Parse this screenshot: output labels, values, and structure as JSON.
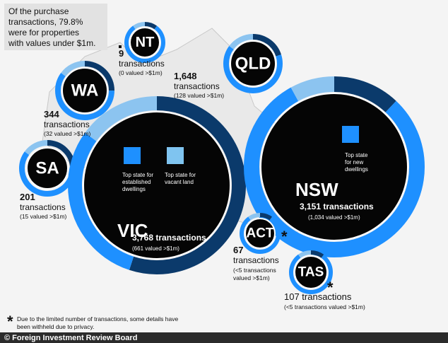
{
  "note": {
    "lines": [
      "Of the purchase",
      "transactions, 79.8%",
      "were for properties",
      "with values under $1m."
    ]
  },
  "states": {
    "nt": {
      "label": "NT",
      "count": "9",
      "unit": "transactions",
      "detail": "(0 valued >$1m)"
    },
    "wa": {
      "label": "WA",
      "count": "344",
      "unit": "transactions",
      "detail": "(32 valued >$1m)"
    },
    "qld": {
      "label": "QLD",
      "count": "1,648",
      "unit": "transactions",
      "detail": "(128 valued >$1m)"
    },
    "sa": {
      "label": "SA",
      "count": "201",
      "unit": "transactions",
      "detail": "(15 valued >$1m)"
    },
    "vic": {
      "label": "VIC",
      "summary": "3,768 transactions",
      "detail": "(661 valued >$1m)",
      "badge1": [
        "Top state for",
        "established",
        "dwellings"
      ],
      "badge2": [
        "Top state for",
        "vacant land"
      ]
    },
    "nsw": {
      "label": "NSW",
      "summary": "3,151 transactions",
      "detail": "(1,034 valued >$1m)",
      "badge": [
        "Top state",
        "for new",
        "dwellings"
      ]
    },
    "act": {
      "label": "ACT",
      "marker": "*",
      "count": "67",
      "unit": "transactions",
      "detail": [
        "(<5 transactions",
        "valued >$1m)"
      ]
    },
    "tas": {
      "label": "TAS",
      "marker": "*",
      "summary": "107 transactions",
      "detail": "(<5 transactions valued >$1m)"
    }
  },
  "footnote": {
    "marker": "*",
    "lines": [
      "Due to the limited number of transactions, some details have",
      "been withheld due to privacy."
    ]
  },
  "source": "© Foreign Investment Review Board"
}
